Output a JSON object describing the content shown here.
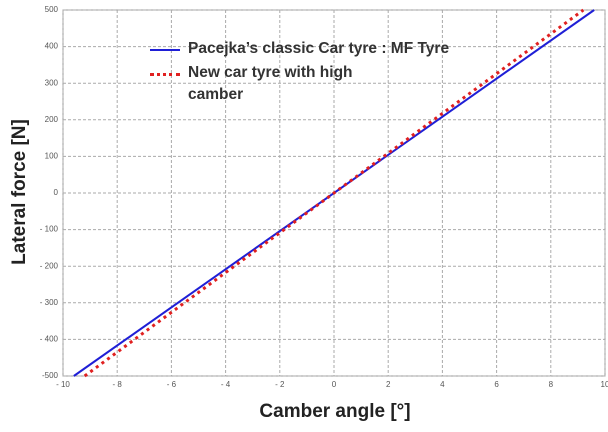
{
  "chart_data": {
    "type": "line",
    "xlabel": "Camber angle [°]",
    "ylabel": "Lateral force [N]",
    "xlim": [
      -10,
      10
    ],
    "xticks": [
      {
        "value": -10,
        "label": "- 10"
      },
      {
        "value": -8,
        "label": "- 8"
      },
      {
        "value": -6,
        "label": "- 6"
      },
      {
        "value": -4,
        "label": "- 4"
      },
      {
        "value": -2,
        "label": "- 2"
      },
      0,
      2,
      4,
      6,
      8,
      10
    ],
    "ylim": [
      -500,
      500
    ],
    "yticks": [
      {
        "value": -500,
        "label": "-500"
      },
      {
        "value": -400,
        "label": "- 400"
      },
      {
        "value": -300,
        "label": "- 300"
      },
      {
        "value": -200,
        "label": "- 200"
      },
      {
        "value": -100,
        "label": "- 100"
      },
      0,
      100,
      200,
      300,
      400,
      500
    ],
    "grid": true,
    "legend": "upper left",
    "series": [
      {
        "name": "Pacejka’s classic Car tyre : MF Tyre",
        "color": "#1f1fd6",
        "style": "solid",
        "x": [
          -9.6,
          9.6
        ],
        "values": [
          -500,
          500
        ]
      },
      {
        "name": "New car tyre with high camber",
        "color": "#e02020",
        "style": "dotted",
        "x": [
          -9.2,
          9.2
        ],
        "values": [
          -500,
          500
        ]
      }
    ]
  }
}
